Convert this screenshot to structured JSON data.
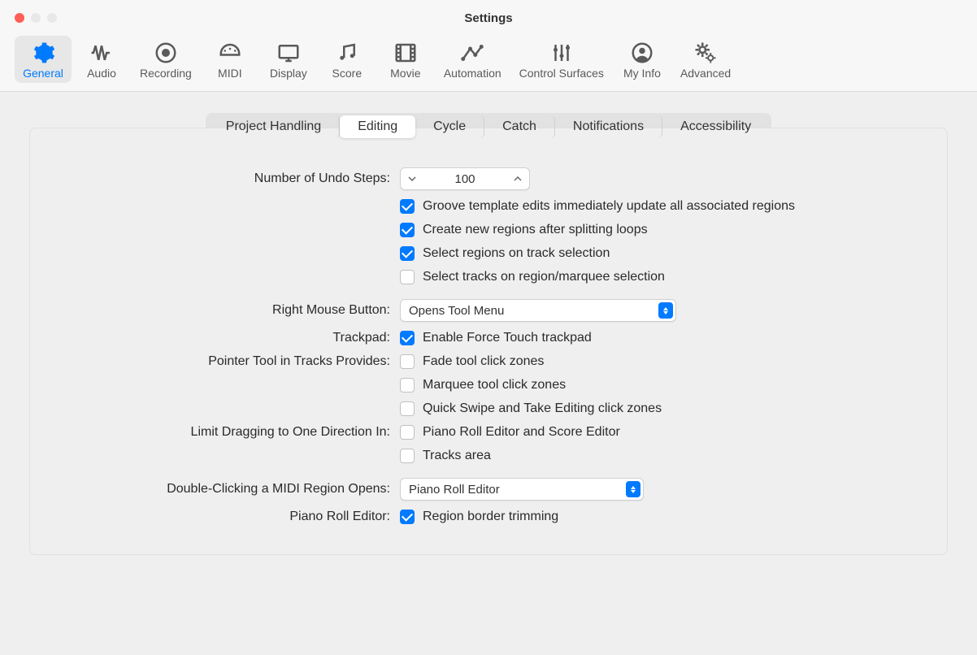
{
  "window": {
    "title": "Settings"
  },
  "toolbar": {
    "items": [
      {
        "label": "General",
        "icon": "gear",
        "selected": true
      },
      {
        "label": "Audio",
        "icon": "waveform",
        "selected": false
      },
      {
        "label": "Recording",
        "icon": "record",
        "selected": false
      },
      {
        "label": "MIDI",
        "icon": "midi",
        "selected": false
      },
      {
        "label": "Display",
        "icon": "display",
        "selected": false
      },
      {
        "label": "Score",
        "icon": "notes",
        "selected": false
      },
      {
        "label": "Movie",
        "icon": "film",
        "selected": false
      },
      {
        "label": "Automation",
        "icon": "automation",
        "selected": false
      },
      {
        "label": "Control Surfaces",
        "icon": "sliders",
        "selected": false
      },
      {
        "label": "My Info",
        "icon": "user",
        "selected": false
      },
      {
        "label": "Advanced",
        "icon": "gears",
        "selected": false
      }
    ]
  },
  "subtabs": {
    "items": [
      {
        "label": "Project Handling",
        "selected": false
      },
      {
        "label": "Editing",
        "selected": true
      },
      {
        "label": "Cycle",
        "selected": false
      },
      {
        "label": "Catch",
        "selected": false
      },
      {
        "label": "Notifications",
        "selected": false
      },
      {
        "label": "Accessibility",
        "selected": false
      }
    ]
  },
  "form": {
    "undo_label": "Number of Undo Steps:",
    "undo_value": "100",
    "checks1": [
      {
        "label": "Groove template edits immediately update all associated regions",
        "checked": true
      },
      {
        "label": "Create new regions after splitting loops",
        "checked": true
      },
      {
        "label": "Select regions on track selection",
        "checked": true
      },
      {
        "label": "Select tracks on region/marquee selection",
        "checked": false
      }
    ],
    "right_mouse_label": "Right Mouse Button:",
    "right_mouse_value": "Opens Tool Menu",
    "trackpad_label": "Trackpad:",
    "trackpad_check": {
      "label": "Enable Force Touch trackpad",
      "checked": true
    },
    "pointer_label": "Pointer Tool in Tracks Provides:",
    "pointer_checks": [
      {
        "label": "Fade tool click zones",
        "checked": false
      },
      {
        "label": "Marquee tool click zones",
        "checked": false
      },
      {
        "label": "Quick Swipe and Take Editing click zones",
        "checked": false
      }
    ],
    "limit_label": "Limit Dragging to One Direction In:",
    "limit_checks": [
      {
        "label": "Piano Roll Editor and Score Editor",
        "checked": false
      },
      {
        "label": "Tracks area",
        "checked": false
      }
    ],
    "double_click_label": "Double-Clicking a MIDI Region Opens:",
    "double_click_value": "Piano Roll Editor",
    "piano_roll_label": "Piano Roll Editor:",
    "piano_roll_check": {
      "label": "Region border trimming",
      "checked": true
    }
  },
  "colors": {
    "accent": "#007aff",
    "window_bg": "#efefef",
    "toolbar_bg": "#f7f7f7"
  }
}
